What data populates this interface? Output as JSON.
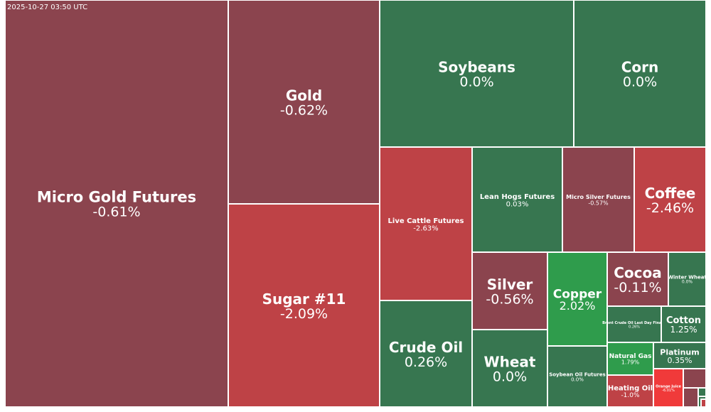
{
  "timestamp": "2025-10-27 03:50 UTC",
  "colors": {
    "negative_dark": "#8b444e",
    "negative": "#be4246",
    "negative_strong": "#f03a3a",
    "neutral_positive": "#377650",
    "positive_strong": "#2f9c4c",
    "text": "#ffffff"
  },
  "chart_data": {
    "type": "treemap",
    "title": "",
    "items": [
      {
        "name": "Micro Gold Futures",
        "change": "-0.61%",
        "value": -0.61
      },
      {
        "name": "Gold",
        "change": "-0.62%",
        "value": -0.62
      },
      {
        "name": "Sugar #11",
        "change": "-2.09%",
        "value": -2.09
      },
      {
        "name": "Soybeans",
        "change": "0.0%",
        "value": 0.0
      },
      {
        "name": "Corn",
        "change": "0.0%",
        "value": 0.0
      },
      {
        "name": "Live Cattle Futures",
        "change": "-2.63%",
        "value": -2.63
      },
      {
        "name": "Lean Hogs Futures",
        "change": "0.03%",
        "value": 0.03
      },
      {
        "name": "Micro Silver Futures",
        "change": "-0.57%",
        "value": -0.57
      },
      {
        "name": "Coffee",
        "change": "-2.46%",
        "value": -2.46
      },
      {
        "name": "Crude Oil",
        "change": "0.26%",
        "value": 0.26
      },
      {
        "name": "Silver",
        "change": "-0.56%",
        "value": -0.56
      },
      {
        "name": "Wheat",
        "change": "0.0%",
        "value": 0.0
      },
      {
        "name": "Copper",
        "change": "2.02%",
        "value": 2.02
      },
      {
        "name": "Soybean Oil Futures",
        "change": "0.0%",
        "value": 0.0
      },
      {
        "name": "Cocoa",
        "change": "-0.11%",
        "value": -0.11
      },
      {
        "name": "Winter Wheat",
        "change": "0.0%",
        "value": 0.0
      },
      {
        "name": "Brent Crude Oil Last Day Financ",
        "change": "0.26%",
        "value": 0.26
      },
      {
        "name": "Cotton",
        "change": "1.25%",
        "value": 1.25
      },
      {
        "name": "Natural Gas",
        "change": "1.79%",
        "value": 1.79
      },
      {
        "name": "Platinum",
        "change": "0.35%",
        "value": 0.35
      },
      {
        "name": "Heating Oil",
        "change": "-1.0%",
        "value": -1.0
      },
      {
        "name": "Orange Juice",
        "change": "-6.01%",
        "value": -6.01
      },
      {
        "name": "",
        "change": "",
        "value": -0.5
      },
      {
        "name": "",
        "change": "",
        "value": -0.5
      },
      {
        "name": "",
        "change": "",
        "value": 0.0
      },
      {
        "name": "",
        "change": "",
        "value": 0.0
      },
      {
        "name": "",
        "change": "",
        "value": -2.0
      }
    ]
  }
}
